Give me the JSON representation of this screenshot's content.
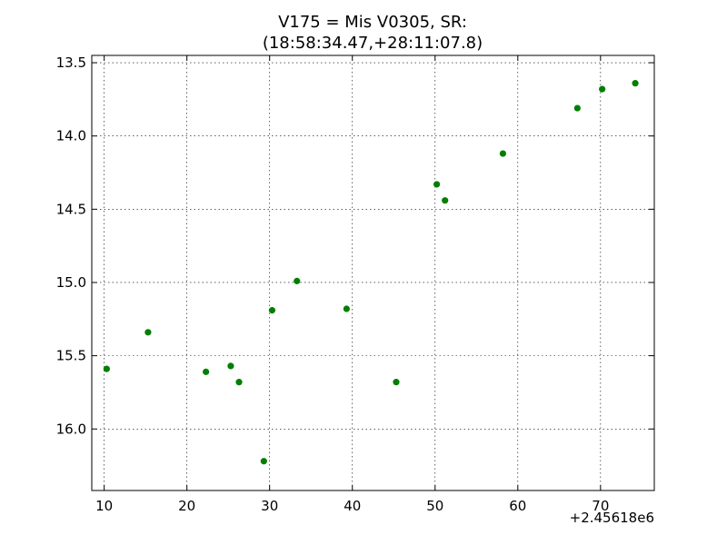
{
  "title_line1": "V175 = Mis V0305, SR:",
  "title_line2": "(18:58:34.47,+28:11:07.8)",
  "x_offset_label": "+2.45618e6",
  "chart_data": {
    "type": "scatter",
    "title": "V175 = Mis V0305, SR: (18:58:34.47,+28:11:07.8)",
    "xlabel": "",
    "ylabel": "",
    "xlim": [
      8.5,
      76.5
    ],
    "ylim": [
      16.42,
      13.45
    ],
    "y_inverted": true,
    "grid": true,
    "x_ticks": [
      10,
      20,
      30,
      40,
      50,
      60,
      70
    ],
    "x_tick_labels": [
      "10",
      "20",
      "30",
      "40",
      "50",
      "60",
      "70"
    ],
    "y_ticks": [
      13.5,
      14.0,
      14.5,
      15.0,
      15.5,
      16.0
    ],
    "y_tick_labels": [
      "13.5",
      "14.0",
      "14.5",
      "15.0",
      "15.5",
      "16.0"
    ],
    "marker_color": "#007f00",
    "points": [
      {
        "x": 10.3,
        "y": 15.59
      },
      {
        "x": 15.3,
        "y": 15.34
      },
      {
        "x": 22.3,
        "y": 15.61
      },
      {
        "x": 25.3,
        "y": 15.57
      },
      {
        "x": 26.3,
        "y": 15.68
      },
      {
        "x": 29.3,
        "y": 16.22
      },
      {
        "x": 30.3,
        "y": 15.19
      },
      {
        "x": 33.3,
        "y": 14.99
      },
      {
        "x": 39.3,
        "y": 15.18
      },
      {
        "x": 45.3,
        "y": 15.68
      },
      {
        "x": 50.2,
        "y": 14.33
      },
      {
        "x": 51.2,
        "y": 14.44
      },
      {
        "x": 58.2,
        "y": 14.12
      },
      {
        "x": 67.2,
        "y": 13.81
      },
      {
        "x": 70.2,
        "y": 13.68
      },
      {
        "x": 74.2,
        "y": 13.64
      }
    ]
  }
}
